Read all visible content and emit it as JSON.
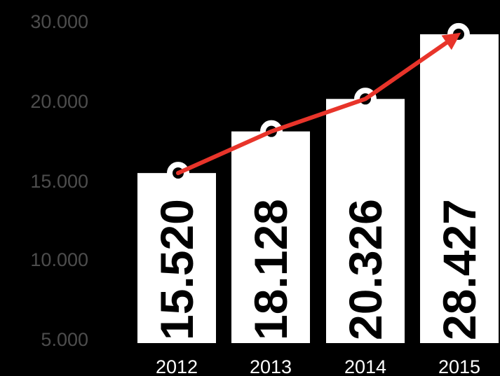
{
  "chart_data": {
    "type": "bar",
    "categories": [
      "2012",
      "2013",
      "2014",
      "2015"
    ],
    "values": [
      15520,
      18128,
      20326,
      28427
    ],
    "value_labels": [
      "15.520",
      "18.128",
      "20.326",
      "28.427"
    ],
    "y_ticks": [
      5000,
      10000,
      15000,
      20000,
      30000
    ],
    "y_tick_labels": [
      "5.000",
      "10.000",
      "15.000",
      "20.000",
      "30.000"
    ],
    "has_trend_line": true,
    "grid": false,
    "colors": {
      "background": "#000000",
      "bar": "#ffffff",
      "trend": "#e8342a",
      "tick_text": "#4d4d4d",
      "category_text": "#ffffff",
      "value_text": "#000000"
    }
  }
}
